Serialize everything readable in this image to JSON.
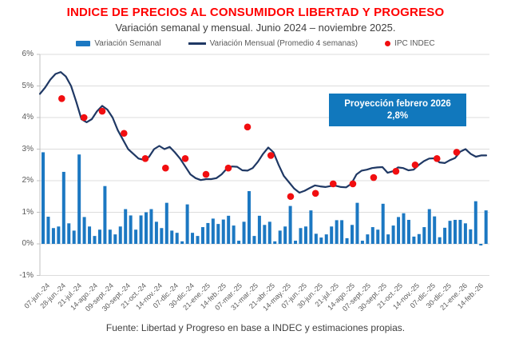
{
  "title": "INDICE DE PRECIOS AL CONSUMIDOR LIBERTAD Y PROGRESO",
  "subtitle": "Variación semanal y mensual. Junio 2024 – noviembre 2025.",
  "footer": "Fuente: Libertad y Progreso en base a INDEC y estimaciones propias.",
  "legend": [
    {
      "label": "Variación Semanal",
      "type": "bar-swatch",
      "color": "#1c78c2"
    },
    {
      "label": "Variación Mensual (Promedio 4 semanas)",
      "type": "line-swatch",
      "color": "#1f3864"
    },
    {
      "label": "IPC INDEC",
      "type": "dot-swatch",
      "color": "#f10e10"
    }
  ],
  "annotation": {
    "line1": "Proyección febrero 2026",
    "line2": "2,8%",
    "bg_color": "#1178bd",
    "text_color": "#ffffff"
  },
  "colors": {
    "title_red": "#ff0000",
    "bar_blue": "#1c78c2",
    "line_navy": "#1f3864",
    "dot_red": "#f10e10",
    "grid_gray": "#dcdcdc",
    "axis_gray": "#c0c0c0",
    "label_gray": "#595959"
  },
  "chart_data": {
    "type": "bar+line+scatter",
    "ylim": [
      -1,
      6
    ],
    "grid": true,
    "yticks": [
      {
        "value": 6,
        "label": "6%"
      },
      {
        "value": 5,
        "label": "5%"
      },
      {
        "value": 4,
        "label": "4%"
      },
      {
        "value": 3,
        "label": "3%"
      },
      {
        "value": 2,
        "label": "2%"
      },
      {
        "value": 1,
        "label": "1%"
      },
      {
        "value": 0,
        "label": "0%"
      },
      {
        "value": -1,
        "label": "-1%"
      }
    ],
    "x_labels": [
      "07-jun.-24",
      "28-jun.-24",
      "21-jul.-24",
      "14-ago.-24",
      "09-sept.-24",
      "30-sept.-24",
      "21-oct.-24",
      "14-nov.-24",
      "07-dic.-24",
      "30-dic.-24",
      "21-ene.-25",
      "14-feb.-25",
      "07-mar.-25",
      "31-mar.-25",
      "21-abr.-25",
      "14-may.-25",
      "07-jun.-25",
      "30-jun.-25",
      "21-jul.-25",
      "14-ago.-25",
      "07-sept.-25",
      "30-sept.-25",
      "21-oct.-25",
      "14-nov.-25",
      "07-dic.-25",
      "30-dic.-25",
      "21-ene.-26",
      "14-feb.-26"
    ],
    "series": [
      {
        "name": "Variación Semanal",
        "type": "bar",
        "unit": "%",
        "values": [
          2.9,
          0.86,
          0.5,
          0.55,
          2.28,
          0.65,
          0.42,
          2.83,
          0.85,
          0.55,
          0.25,
          0.45,
          1.83,
          0.45,
          0.3,
          0.55,
          1.1,
          0.9,
          0.45,
          0.9,
          1.0,
          1.1,
          0.7,
          0.5,
          1.3,
          0.42,
          0.35,
          0.08,
          1.25,
          0.35,
          0.25,
          0.53,
          0.66,
          0.8,
          0.63,
          0.77,
          0.89,
          0.58,
          0.1,
          0.7,
          1.67,
          0.25,
          0.89,
          0.6,
          0.7,
          0.08,
          0.42,
          0.55,
          1.2,
          0.1,
          0.5,
          0.55,
          1.06,
          0.32,
          0.2,
          0.3,
          0.55,
          0.75,
          0.75,
          0.18,
          0.6,
          1.3,
          0.1,
          0.3,
          0.53,
          0.45,
          1.27,
          0.3,
          0.58,
          0.85,
          0.97,
          0.76,
          0.23,
          0.31,
          0.53,
          1.1,
          0.87,
          0.21,
          0.51,
          0.73,
          0.76,
          0.76,
          0.65,
          0.46,
          1.35,
          -0.05,
          1.06
        ]
      },
      {
        "name": "Variación Mensual (Promedio 4 semanas)",
        "type": "line",
        "unit": "%",
        "values": [
          4.75,
          4.95,
          5.2,
          5.38,
          5.44,
          5.3,
          5.0,
          4.5,
          3.95,
          3.85,
          3.95,
          4.2,
          4.37,
          4.25,
          4.0,
          3.6,
          3.3,
          3.0,
          2.85,
          2.7,
          2.66,
          2.75,
          3.0,
          3.1,
          3.0,
          3.07,
          2.9,
          2.7,
          2.45,
          2.2,
          2.08,
          2.02,
          2.05,
          2.05,
          2.08,
          2.2,
          2.38,
          2.45,
          2.44,
          2.33,
          2.32,
          2.4,
          2.6,
          2.85,
          3.05,
          2.9,
          2.5,
          2.15,
          1.95,
          1.75,
          1.62,
          1.68,
          1.77,
          1.85,
          1.82,
          1.8,
          1.83,
          1.84,
          1.8,
          1.79,
          1.9,
          2.2,
          2.32,
          2.35,
          2.4,
          2.42,
          2.43,
          2.25,
          2.3,
          2.42,
          2.4,
          2.33,
          2.35,
          2.5,
          2.62,
          2.7,
          2.71,
          2.58,
          2.56,
          2.65,
          2.72,
          2.92,
          3.0,
          2.85,
          2.76,
          2.8,
          2.8
        ]
      },
      {
        "name": "IPC INDEC",
        "type": "scatter",
        "unit": "%",
        "points": [
          {
            "month": "jun-24",
            "week": 4.2,
            "value": 4.6
          },
          {
            "month": "jul-24",
            "week": 8.5,
            "value": 4.0
          },
          {
            "month": "ago-24",
            "week": 12.0,
            "value": 4.2
          },
          {
            "month": "sept-24",
            "week": 16.2,
            "value": 3.5
          },
          {
            "month": "oct-24",
            "week": 20.3,
            "value": 2.7
          },
          {
            "month": "nov-24",
            "week": 24.2,
            "value": 2.4
          },
          {
            "month": "dic-24",
            "week": 28.0,
            "value": 2.7
          },
          {
            "month": "ene-25",
            "week": 32.0,
            "value": 2.2
          },
          {
            "month": "feb-25",
            "week": 36.3,
            "value": 2.4
          },
          {
            "month": "mar-25",
            "week": 40.0,
            "value": 3.7
          },
          {
            "month": "abr-25",
            "week": 44.5,
            "value": 2.8
          },
          {
            "month": "may-25",
            "week": 48.3,
            "value": 1.5
          },
          {
            "month": "jun-25",
            "week": 53.1,
            "value": 1.6
          },
          {
            "month": "jul-25",
            "week": 56.5,
            "value": 1.9
          },
          {
            "month": "ago-25",
            "week": 60.3,
            "value": 1.9
          },
          {
            "month": "sept-25",
            "week": 64.3,
            "value": 2.1
          },
          {
            "month": "oct-25",
            "week": 68.6,
            "value": 2.3
          },
          {
            "month": "nov-25",
            "week": 72.3,
            "value": 2.5
          },
          {
            "month": "dic-25",
            "week": 76.5,
            "value": 2.7
          },
          {
            "month": "ene-26",
            "week": 80.3,
            "value": 2.9
          }
        ]
      }
    ]
  }
}
